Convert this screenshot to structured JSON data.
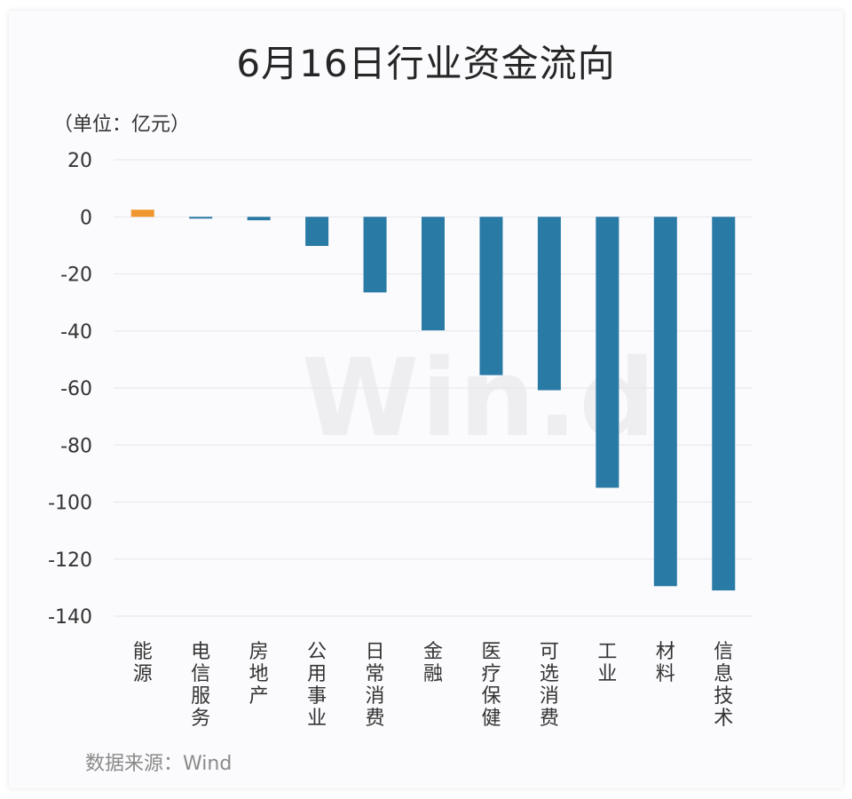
{
  "header": {
    "title": "6月16日行业资金流向",
    "unit": "（单位：亿元）",
    "source": "数据来源：Wind",
    "watermark": "Win.d"
  },
  "colors": {
    "positive": "#F0962E",
    "negative": "#2A7AA6",
    "grid": "#E6E6EC"
  },
  "chart_data": {
    "type": "bar",
    "title": "6月16日行业资金流向",
    "ylabel": "（单位：亿元）",
    "xlabel": "",
    "categories": [
      "能源",
      "电信服务",
      "房地产",
      "公用事业",
      "日常消费",
      "金融",
      "医疗保健",
      "可选消费",
      "工业",
      "材料",
      "信息技术"
    ],
    "values": [
      2.5,
      -0.3,
      -1.2,
      -10.2,
      -26.5,
      -39.8,
      -55.5,
      -60.8,
      -95.0,
      -129.5,
      -131.0
    ],
    "ylim": [
      -140,
      20
    ],
    "yticks": [
      20,
      0,
      -20,
      -40,
      -60,
      -80,
      -100,
      -120,
      -140
    ],
    "grid": true,
    "legend": "none"
  }
}
